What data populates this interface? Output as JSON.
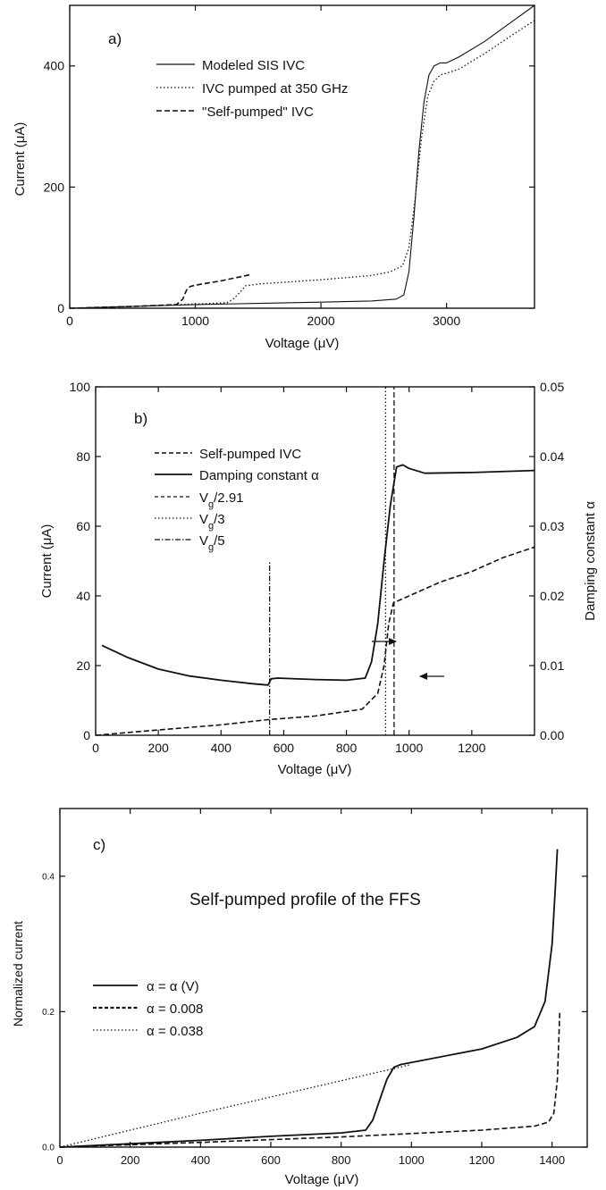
{
  "chart_data": [
    {
      "type": "line",
      "panel_label": "a)",
      "xlabel": "Voltage  (μV)",
      "ylabel": "Current  (μA)",
      "xlim": [
        0,
        3700
      ],
      "ylim": [
        0,
        500
      ],
      "xticks": [
        0,
        1000,
        2000,
        3000
      ],
      "yticks": [
        0,
        200,
        400
      ],
      "grid": false,
      "legend_position": "top-left",
      "series": [
        {
          "name": "Modeled SIS  IVC",
          "style": "solid",
          "x": [
            0,
            500,
            1000,
            1500,
            2000,
            2400,
            2600,
            2660,
            2700,
            2740,
            2780,
            2820,
            2860,
            2900,
            2950,
            3000,
            3100,
            3300,
            3500,
            3700
          ],
          "y": [
            0,
            3,
            6,
            8,
            10,
            12,
            15,
            22,
            60,
            150,
            260,
            340,
            385,
            400,
            405,
            405,
            415,
            440,
            470,
            500
          ]
        },
        {
          "name": "IVC pumped at 350 GHz",
          "style": "dotted",
          "x": [
            0,
            500,
            1000,
            1250,
            1300,
            1350,
            1400,
            1500,
            2000,
            2400,
            2550,
            2650,
            2700,
            2750,
            2800,
            2850,
            2900,
            2950,
            3000,
            3100,
            3300,
            3500,
            3700
          ],
          "y": [
            0,
            3,
            7,
            9,
            15,
            25,
            37,
            40,
            47,
            54,
            60,
            70,
            100,
            180,
            280,
            350,
            375,
            385,
            388,
            395,
            420,
            448,
            475
          ]
        },
        {
          "name": "\"Self-pumped\" IVC",
          "style": "dashed",
          "x": [
            0,
            500,
            850,
            900,
            930,
            960,
            1000,
            1200,
            1430
          ],
          "y": [
            0,
            3,
            6,
            15,
            30,
            36,
            38,
            45,
            55
          ]
        }
      ]
    },
    {
      "type": "line",
      "panel_label": "b)",
      "xlabel": "Voltage  (μV)",
      "ylabel": "Current  (μA)",
      "y2label": "Damping constant  α",
      "xlim": [
        0,
        1400
      ],
      "ylim": [
        0,
        100
      ],
      "y2lim": [
        0,
        0.05
      ],
      "xticks": [
        0,
        200,
        400,
        600,
        800,
        1000,
        1200
      ],
      "yticks": [
        0,
        20,
        40,
        60,
        80,
        100
      ],
      "y2ticks": [
        0.0,
        0.01,
        0.02,
        0.03,
        0.04,
        0.05
      ],
      "y2ticklabels": [
        "0.00",
        "0.01",
        "0.02",
        "0.03",
        "0.04",
        "0.05"
      ],
      "grid": false,
      "legend_position": "top-left",
      "series": [
        {
          "name": "Self-pumped IVC",
          "style": "dashed",
          "axis": "left",
          "x": [
            0,
            200,
            400,
            550,
            700,
            850,
            900,
            920,
            935,
            950,
            1000,
            1100,
            1200,
            1300,
            1400
          ],
          "y": [
            0,
            1.5,
            3,
            4.5,
            5.5,
            7.5,
            12,
            20,
            32,
            38,
            40,
            44,
            47,
            51,
            54
          ]
        },
        {
          "name": "Damping constant α",
          "style": "solid",
          "axis": "right",
          "x": [
            20,
            100,
            200,
            300,
            400,
            500,
            550,
            560,
            580,
            700,
            800,
            860,
            880,
            900,
            920,
            940,
            960,
            980,
            1000,
            1050,
            1200,
            1400
          ],
          "y": [
            0.0129,
            0.0112,
            0.0095,
            0.0085,
            0.0079,
            0.0074,
            0.0072,
            0.0081,
            0.0082,
            0.008,
            0.0079,
            0.0082,
            0.0105,
            0.016,
            0.025,
            0.033,
            0.0385,
            0.0388,
            0.0383,
            0.0376,
            0.0377,
            0.038
          ]
        }
      ],
      "markers": [
        {
          "name": "V_g/2.91",
          "style": "dashed",
          "x": 952
        },
        {
          "name": "V_g/3",
          "style": "dotted",
          "x": 925
        },
        {
          "name": "V_g/5",
          "style": "dashdot",
          "x": 555,
          "y_top": 50
        }
      ],
      "legend_labels": {
        "self_pumped": "Self-pumped IVC",
        "damping": "Damping constant α",
        "vg291": {
          "base": "V",
          "sub": "g",
          "rest": "/2.91"
        },
        "vg3": {
          "base": "V",
          "sub": "g",
          "rest": "/3"
        },
        "vg5": {
          "base": "V",
          "sub": "g",
          "rest": "/5"
        }
      }
    },
    {
      "type": "line",
      "panel_label": "c)",
      "title": "Self-pumped profile of the FFS",
      "xlabel": "Voltage  (μV)",
      "ylabel": "Normalized current",
      "xlim": [
        0,
        1500
      ],
      "ylim": [
        0,
        0.5
      ],
      "xticks": [
        0,
        200,
        400,
        600,
        800,
        1000,
        1200,
        1400
      ],
      "yticks": [
        0.0,
        0.2,
        0.4
      ],
      "yticklabels": [
        "0.0",
        "0.2",
        "0.4"
      ],
      "grid": false,
      "legend_position": "center-left",
      "series": [
        {
          "name": "α = α (V)",
          "style": "solid",
          "x": [
            0,
            200,
            400,
            600,
            800,
            870,
            890,
            910,
            930,
            950,
            970,
            1000,
            1200,
            1300,
            1350,
            1380,
            1400,
            1410,
            1415
          ],
          "y": [
            0,
            0.005,
            0.01,
            0.016,
            0.021,
            0.025,
            0.04,
            0.07,
            0.1,
            0.118,
            0.122,
            0.125,
            0.145,
            0.162,
            0.178,
            0.215,
            0.3,
            0.39,
            0.44
          ]
        },
        {
          "name": "α = 0.008",
          "style": "dashed",
          "x": [
            0,
            400,
            800,
            1200,
            1350,
            1390,
            1405,
            1415,
            1420,
            1422
          ],
          "y": [
            0,
            0.007,
            0.015,
            0.025,
            0.031,
            0.037,
            0.05,
            0.1,
            0.17,
            0.2
          ]
        },
        {
          "name": "α = 0.038",
          "style": "dotted",
          "x": [
            0,
            200,
            400,
            600,
            800,
            1000
          ],
          "y": [
            0,
            0.025,
            0.05,
            0.074,
            0.098,
            0.122
          ]
        }
      ]
    }
  ]
}
